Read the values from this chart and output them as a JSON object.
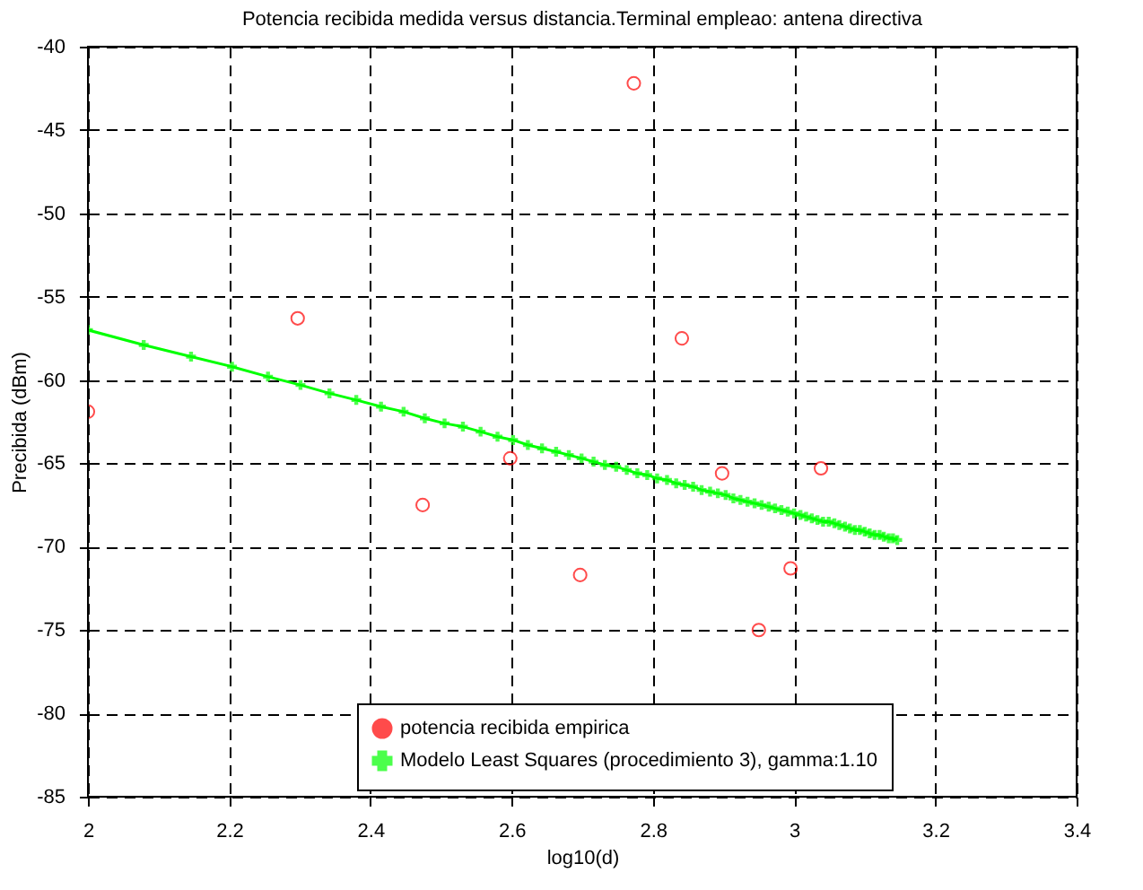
{
  "chart_data": {
    "type": "scatter",
    "title": "Potencia recibida medida versus distancia.Terminal empleao: antena directiva",
    "xlabel": "log10(d)",
    "ylabel": "Precibida (dBm)",
    "xlim": [
      2,
      3.4
    ],
    "xticks": [
      2,
      2.2,
      2.4,
      2.6,
      2.8,
      3,
      3.2,
      3.4
    ],
    "ylim": [
      -85,
      -40
    ],
    "yticks": [
      -85,
      -80,
      -75,
      -70,
      -65,
      -60,
      -55,
      -50,
      -45,
      -40
    ],
    "grid": true,
    "legend": "bottom",
    "series": [
      {
        "name": "potencia recibida empirica",
        "marker": "circle",
        "color": "#ff0000",
        "x": [
          2.0,
          2.297,
          2.474,
          2.598,
          2.697,
          2.773,
          2.841,
          2.898,
          2.95,
          2.995,
          3.038
        ],
        "values": [
          -61.9,
          -56.3,
          -67.5,
          -64.7,
          -71.7,
          -42.2,
          -57.5,
          -65.6,
          -75.0,
          -71.3,
          -65.3
        ]
      },
      {
        "name": "Modelo Least Squares (procedimiento 3), gamma:1.10",
        "type": "line",
        "marker": "cross",
        "line_style": "solid",
        "color": "#00ff00",
        "x": [
          2.0,
          2.079,
          2.146,
          2.204,
          2.255,
          2.301,
          2.342,
          2.38,
          2.415,
          2.447,
          2.477,
          2.505,
          2.531,
          2.556,
          2.58,
          2.602,
          2.623,
          2.643,
          2.663,
          2.681,
          2.699,
          2.716,
          2.732,
          2.748,
          2.763,
          2.778,
          2.792,
          2.806,
          2.82,
          2.833,
          2.845,
          2.857,
          2.869,
          2.881,
          2.892,
          2.903,
          2.914,
          2.924,
          2.934,
          2.944,
          2.954,
          2.964,
          2.973,
          2.982,
          2.991,
          3.0,
          3.009,
          3.017,
          3.025,
          3.033,
          3.041,
          3.049,
          3.057,
          3.064,
          3.072,
          3.079,
          3.086,
          3.093,
          3.1,
          3.107,
          3.114,
          3.121,
          3.127,
          3.134,
          3.14,
          3.146
        ],
        "values": [
          -57.0,
          -57.9,
          -58.6,
          -59.2,
          -59.8,
          -60.3,
          -60.8,
          -61.2,
          -61.6,
          -61.9,
          -62.3,
          -62.6,
          -62.8,
          -63.1,
          -63.4,
          -63.6,
          -63.9,
          -64.1,
          -64.3,
          -64.5,
          -64.7,
          -64.9,
          -65.1,
          -65.2,
          -65.4,
          -65.6,
          -65.7,
          -65.9,
          -66.0,
          -66.2,
          -66.3,
          -66.4,
          -66.6,
          -66.7,
          -66.8,
          -66.9,
          -67.1,
          -67.2,
          -67.3,
          -67.4,
          -67.5,
          -67.6,
          -67.7,
          -67.8,
          -67.9,
          -68.0,
          -68.1,
          -68.2,
          -68.3,
          -68.4,
          -68.5,
          -68.5,
          -68.6,
          -68.7,
          -68.8,
          -68.9,
          -69.0,
          -69.0,
          -69.1,
          -69.2,
          -69.3,
          -69.3,
          -69.4,
          -69.5,
          -69.5,
          -69.6
        ]
      }
    ]
  }
}
